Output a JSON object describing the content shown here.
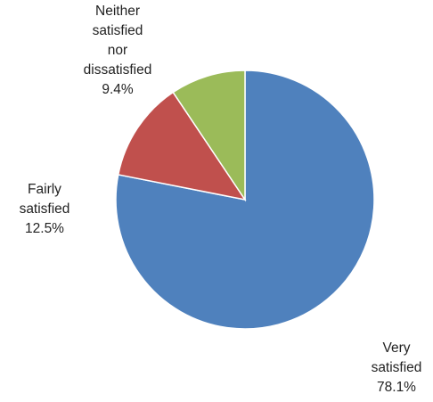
{
  "chart_data": {
    "type": "pie",
    "title": "",
    "start_angle_deg": 0,
    "direction": "clockwise",
    "legend": "none",
    "slices": [
      {
        "name": "Very satisfied",
        "value": 78.1,
        "label_lines": [
          "Very",
          "satisfied",
          "78.1%"
        ],
        "color": "#4F81BD"
      },
      {
        "name": "Fairly satisfied",
        "value": 12.5,
        "label_lines": [
          "Fairly",
          "satisfied",
          "12.5%"
        ],
        "color": "#C0504D"
      },
      {
        "name": "Neither satisfied nor dissatisfied",
        "value": 9.4,
        "label_lines": [
          "Neither",
          "satisfied",
          "nor",
          "dissatisfied",
          "9.4%"
        ],
        "color": "#9BBB59"
      }
    ]
  }
}
